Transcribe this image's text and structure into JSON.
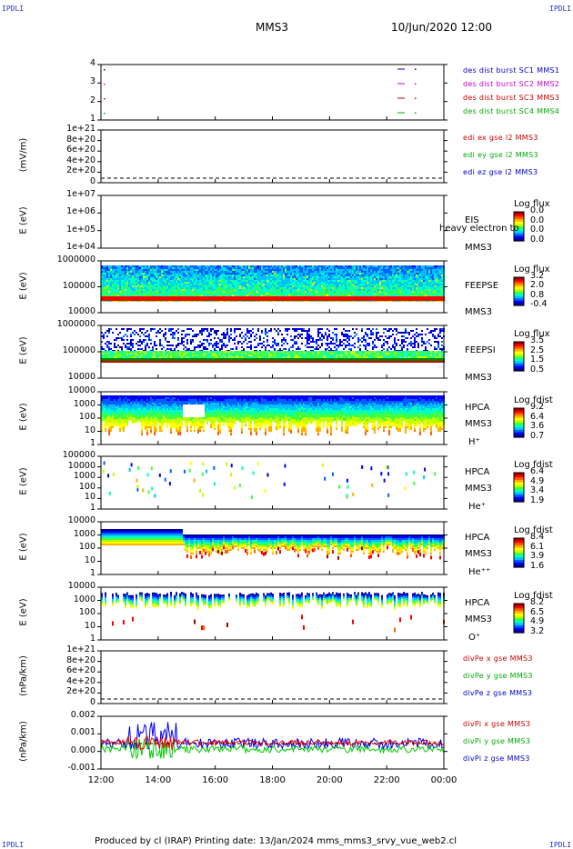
{
  "corners": {
    "tl": "IPDLI",
    "tr": "IPDLI",
    "bl": "IPDLI",
    "br": "IPDLI"
  },
  "header": {
    "mission": "MMS3",
    "datetime": "10/Jun/2020 12:00"
  },
  "footer": {
    "text": "Produced by cl (IRAP)   Printing date: 13/Jan/2024   mms_mms3_srvy_vue_web2.cl"
  },
  "colors": {
    "rainbow": [
      "#ff0000",
      "#ff8800",
      "#ffff00",
      "#00ff00",
      "#00ffff",
      "#0000ff",
      "#000088"
    ]
  },
  "chart_data": [
    {
      "type": "line",
      "id": "p1",
      "ticks": [
        "4",
        "3",
        "2",
        "1"
      ],
      "legend": [
        {
          "text": "des dist burst SC1 MMS1",
          "color": "#0000cc"
        },
        {
          "text": "des dist burst SC2 MMS2",
          "color": "#cc00cc"
        },
        {
          "text": "des dist burst SC3 MMS3",
          "color": "#cc0000"
        },
        {
          "text": "des dist burst SC4 MMS4",
          "color": "#00aa00"
        }
      ]
    },
    {
      "type": "line",
      "id": "p2",
      "ylabel": "(mV/m)",
      "ticks": [
        "1e+21",
        "8e+20",
        "6e+20",
        "4e+20",
        "2e+20",
        "0"
      ],
      "legend": [
        {
          "text": "edi ex gse l2 MMS3",
          "color": "#cc0000"
        },
        {
          "text": "edi ey gse l2 MMS3",
          "color": "#00aa00"
        },
        {
          "text": "edi ez gse l2 MMS3",
          "color": "#0000cc"
        }
      ]
    },
    {
      "type": "heatmap",
      "id": "p3",
      "ylabel": "E (eV)",
      "ticks": [
        "1e+07",
        "1e+06",
        "1e+05",
        "1e+04"
      ],
      "side": [
        "EIS",
        "MMS3"
      ],
      "overlay": "heavy electron to",
      "cbtitle": "Log flux",
      "cbvals": [
        "0.0",
        "0.0",
        "0.0",
        "0.0"
      ]
    },
    {
      "type": "heatmap",
      "id": "p4",
      "ylabel": "E (eV)",
      "ticks": [
        "1000000",
        "100000",
        "10000"
      ],
      "side": [
        "FEEPSE",
        "MMS3"
      ],
      "cbtitle": "Log flux",
      "cbvals": [
        "3.2",
        "2.0",
        "0.8",
        "-0.4"
      ]
    },
    {
      "type": "heatmap",
      "id": "p5",
      "ylabel": "E (eV)",
      "ticks": [
        "1000000",
        "100000",
        "10000"
      ],
      "side": [
        "FEEPSI",
        "MMS3"
      ],
      "cbtitle": "Log flux",
      "cbvals": [
        "3.5",
        "2.5",
        "1.5",
        "0.5"
      ]
    },
    {
      "type": "heatmap",
      "id": "p6",
      "ylabel": "E (eV)",
      "ticks": [
        "10000",
        "1000",
        "100",
        "10",
        "1"
      ],
      "side": [
        "HPCA",
        "MMS3",
        "H⁺"
      ],
      "cbtitle": "Log fdist",
      "cbvals": [
        "9.2",
        "6.4",
        "3.6",
        "0.7"
      ]
    },
    {
      "type": "heatmap",
      "id": "p7",
      "ylabel": "E (eV)",
      "ticks": [
        "100000",
        "10000",
        "1000",
        "100",
        "10",
        "1"
      ],
      "side": [
        "HPCA",
        "MMS3",
        "He⁺"
      ],
      "cbtitle": "Log fdist",
      "cbvals": [
        "6.4",
        "4.9",
        "3.4",
        "1.9"
      ]
    },
    {
      "type": "heatmap",
      "id": "p8",
      "ylabel": "E (eV)",
      "ticks": [
        "10000",
        "1000",
        "100",
        "10",
        "1"
      ],
      "side": [
        "HPCA",
        "MMS3",
        "He⁺⁺"
      ],
      "cbtitle": "Log fdist",
      "cbvals": [
        "8.4",
        "6.1",
        "3.9",
        "1.6"
      ]
    },
    {
      "type": "heatmap",
      "id": "p9",
      "ylabel": "E (eV)",
      "ticks": [
        "10000",
        "1000",
        "100",
        "10",
        "1"
      ],
      "side": [
        "HPCA",
        "MMS3",
        "O⁺"
      ],
      "cbtitle": "Log fdist",
      "cbvals": [
        "8.2",
        "6.5",
        "4.9",
        "3.2"
      ]
    },
    {
      "type": "line",
      "id": "p10",
      "ylabel": "(nPa/km)",
      "ticks": [
        "1e+21",
        "8e+20",
        "6e+20",
        "4e+20",
        "2e+20",
        "0"
      ],
      "legend": [
        {
          "text": "divPe x gse MMS3",
          "color": "#cc0000"
        },
        {
          "text": "divPe y gse MMS3",
          "color": "#00aa00"
        },
        {
          "text": "divPe z gse MMS3",
          "color": "#0000cc"
        }
      ]
    },
    {
      "type": "line",
      "id": "p11",
      "ylabel": "(nPa/km)",
      "ticks": [
        "0.002",
        "0.001",
        "0.000",
        "-0.001"
      ],
      "legend": [
        {
          "text": "divPi x gse MMS3",
          "color": "#cc0000"
        },
        {
          "text": "divPi y gse MMS3",
          "color": "#00aa00"
        },
        {
          "text": "divPi z gse MMS3",
          "color": "#0000cc"
        }
      ]
    }
  ],
  "xaxis": {
    "ticks": [
      "12:00",
      "14:00",
      "16:00",
      "18:00",
      "20:00",
      "22:00",
      "00:00"
    ]
  }
}
